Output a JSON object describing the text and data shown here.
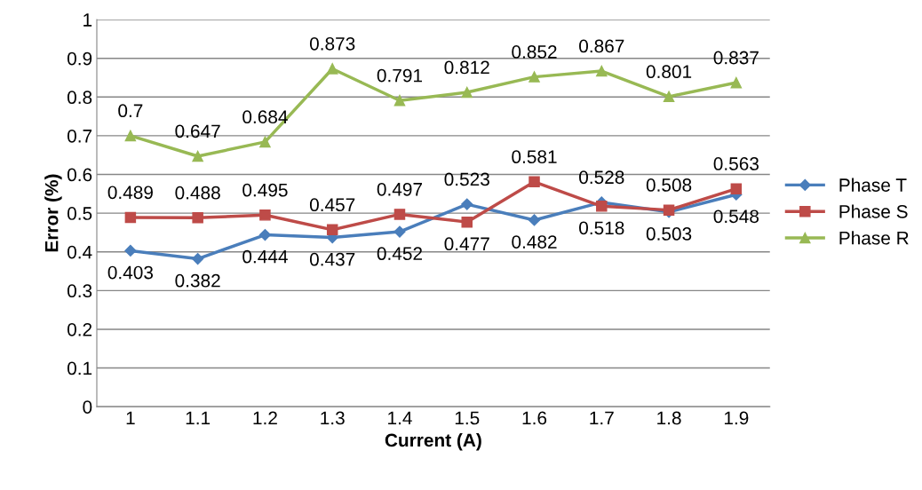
{
  "chart_data": {
    "type": "line",
    "xlabel": "Current (A)",
    "ylabel": "Error (%)",
    "categories": [
      "1",
      "1.1",
      "1.2",
      "1.3",
      "1.4",
      "1.5",
      "1.6",
      "1.7",
      "1.8",
      "1.9"
    ],
    "series": [
      {
        "name": "Phase T",
        "color": "#4a7ebb",
        "marker": "diamond",
        "values": [
          0.403,
          0.382,
          0.444,
          0.437,
          0.452,
          0.523,
          0.482,
          0.528,
          0.503,
          0.548
        ]
      },
      {
        "name": "Phase S",
        "color": "#be4b48",
        "marker": "square",
        "values": [
          0.489,
          0.488,
          0.495,
          0.457,
          0.497,
          0.477,
          0.581,
          0.518,
          0.508,
          0.563
        ]
      },
      {
        "name": "Phase R",
        "color": "#98b954",
        "marker": "triangle",
        "values": [
          0.7,
          0.647,
          0.684,
          0.873,
          0.791,
          0.812,
          0.852,
          0.867,
          0.801,
          0.837
        ]
      }
    ],
    "ylim": [
      0,
      1
    ],
    "yticks": [
      0,
      0.1,
      0.2,
      0.3,
      0.4,
      0.5,
      0.6,
      0.7,
      0.8,
      0.9,
      1
    ],
    "grid": "y",
    "legend": "right",
    "data_labels": true,
    "line_style": "solid"
  }
}
